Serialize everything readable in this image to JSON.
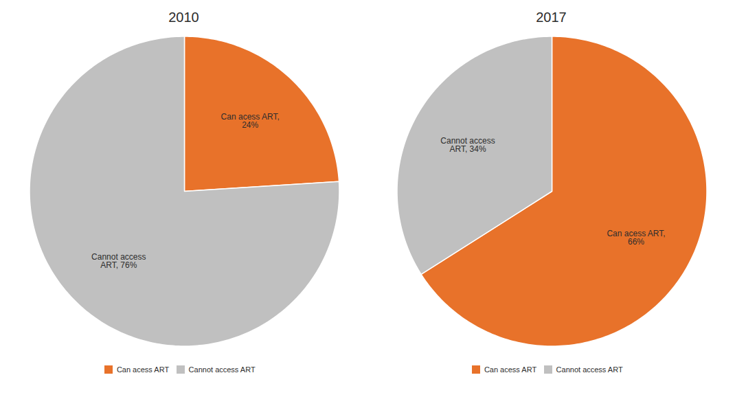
{
  "chart_data": [
    {
      "type": "pie",
      "title": "2010",
      "categories": [
        "Can acess ART",
        "Cannot access ART"
      ],
      "values": [
        24,
        76
      ],
      "value_labels": [
        "Can acess ART,\n24%",
        "Cannot access\nART, 76%"
      ],
      "colors": [
        "#e8722a",
        "#c0c0c0"
      ],
      "data_labels": true,
      "legend": "bottom"
    },
    {
      "type": "pie",
      "title": "2017",
      "categories": [
        "Can acess ART",
        "Cannot access ART"
      ],
      "values": [
        66,
        34
      ],
      "value_labels": [
        "Can acess ART,\n66%",
        "Cannot access\nART, 34%"
      ],
      "colors": [
        "#e8722a",
        "#c0c0c0"
      ],
      "data_labels": true,
      "legend": "bottom"
    }
  ]
}
